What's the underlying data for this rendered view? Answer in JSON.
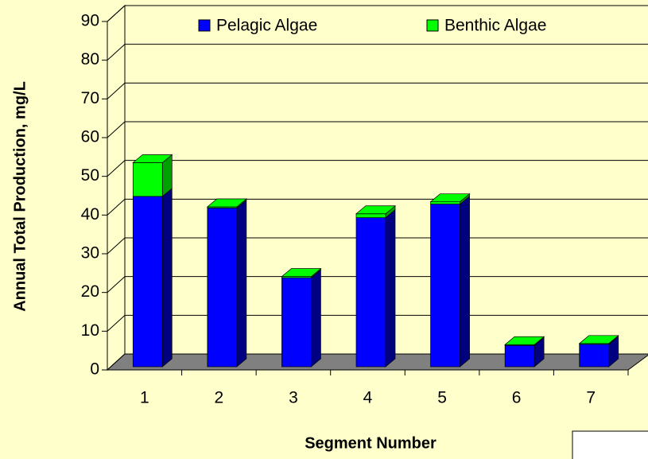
{
  "chart_data": {
    "type": "bar3d_stacked",
    "y_label": "Annual Total Production, mg/L",
    "x_label": "Segment Number",
    "categories": [
      "1",
      "2",
      "3",
      "4",
      "5",
      "6",
      "7"
    ],
    "series": [
      {
        "name": "Pelagic Algae",
        "color": "#0000ff",
        "side": "#000080",
        "values": [
          44,
          41,
          23,
          38.5,
          42,
          5.5,
          5.8
        ]
      },
      {
        "name": "Benthic Algae",
        "color": "#00ff00",
        "side": "#00a000",
        "values": [
          8.7,
          0.3,
          0.3,
          1,
          0.6,
          0.2,
          0.2
        ]
      }
    ],
    "ylim": [
      0,
      90
    ],
    "yticks": [
      0,
      10,
      20,
      30,
      40,
      50,
      60,
      70,
      80,
      90
    ],
    "grid": true
  }
}
